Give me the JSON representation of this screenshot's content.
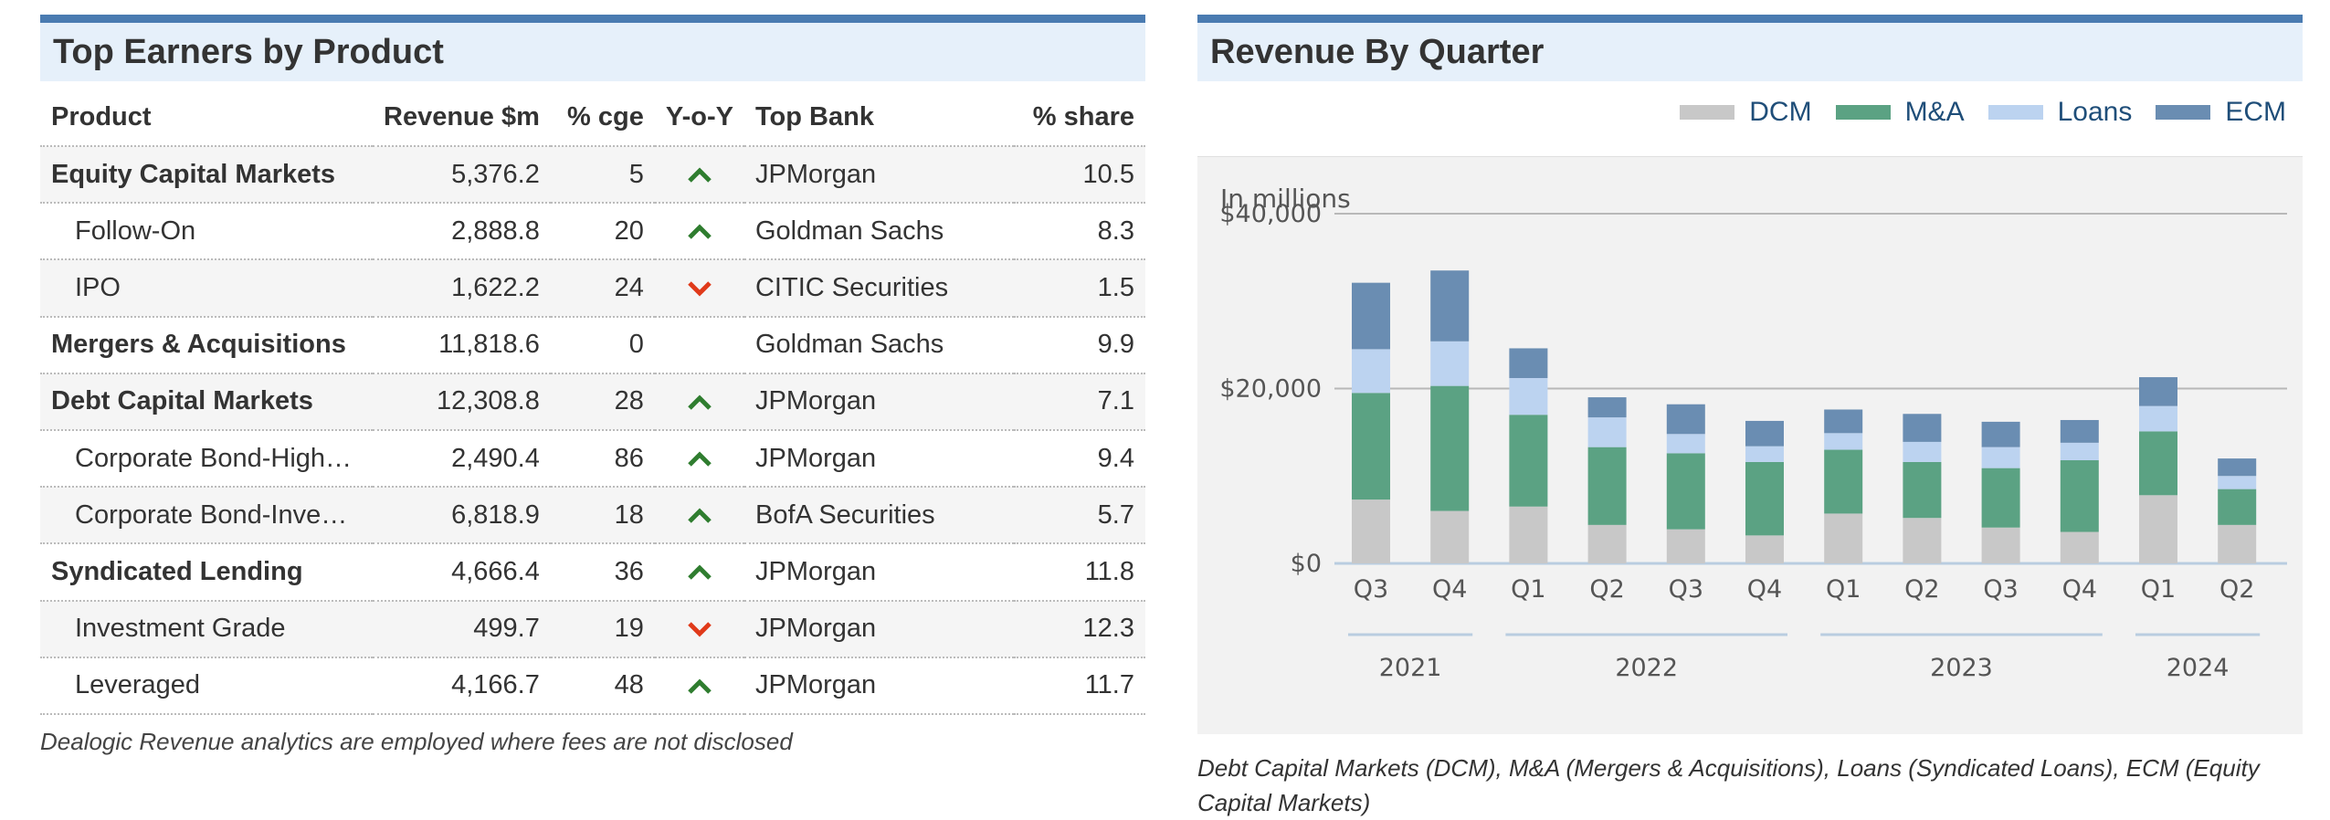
{
  "left": {
    "title": "Top Earners by Product",
    "columns": [
      "Product",
      "Revenue $m",
      "% cge",
      "Y-o-Y",
      "Top Bank",
      "% share"
    ],
    "rows": [
      {
        "product": "Equity Capital Markets",
        "revenue": "5,376.2",
        "cge": "5",
        "yoy": "up",
        "bank": "JPMorgan",
        "share": "10.5",
        "level": "group"
      },
      {
        "product": "Follow-On",
        "revenue": "2,888.8",
        "cge": "20",
        "yoy": "up",
        "bank": "Goldman Sachs",
        "share": "8.3",
        "level": "sub"
      },
      {
        "product": "IPO",
        "revenue": "1,622.2",
        "cge": "24",
        "yoy": "down",
        "bank": "CITIC Securities",
        "share": "1.5",
        "level": "sub"
      },
      {
        "product": "Mergers & Acquisitions",
        "revenue": "11,818.6",
        "cge": "0",
        "yoy": "none",
        "bank": "Goldman Sachs",
        "share": "9.9",
        "level": "group"
      },
      {
        "product": "Debt Capital Markets",
        "revenue": "12,308.8",
        "cge": "28",
        "yoy": "up",
        "bank": "JPMorgan",
        "share": "7.1",
        "level": "group"
      },
      {
        "product": "Corporate Bond-High…",
        "revenue": "2,490.4",
        "cge": "86",
        "yoy": "up",
        "bank": "JPMorgan",
        "share": "9.4",
        "level": "sub"
      },
      {
        "product": "Corporate Bond-Inve…",
        "revenue": "6,818.9",
        "cge": "18",
        "yoy": "up",
        "bank": "BofA Securities",
        "share": "5.7",
        "level": "sub"
      },
      {
        "product": "Syndicated Lending",
        "revenue": "4,666.4",
        "cge": "36",
        "yoy": "up",
        "bank": "JPMorgan",
        "share": "11.8",
        "level": "group"
      },
      {
        "product": "Investment Grade",
        "revenue": "499.7",
        "cge": "19",
        "yoy": "down",
        "bank": "JPMorgan",
        "share": "12.3",
        "level": "sub"
      },
      {
        "product": "Leveraged",
        "revenue": "4,166.7",
        "cge": "48",
        "yoy": "up",
        "bank": "JPMorgan",
        "share": "11.7",
        "level": "sub"
      }
    ],
    "note": "Dealogic Revenue analytics are employed where fees are not disclosed",
    "colors": {
      "up": "#2f7d2f",
      "down": "#e03a1a"
    }
  },
  "right": {
    "title": "Revenue By Quarter",
    "caption": "Debt Capital Markets (DCM), M&A (Mergers & Acquisitions), Loans (Syndicated Loans), ECM (Equity Capital Markets)"
  },
  "chart_data": {
    "type": "bar",
    "stacked": true,
    "ylabel": "In millions",
    "ylim": [
      0,
      40000
    ],
    "yticks": [
      "$0",
      "$20,000",
      "$40,000"
    ],
    "ytick_values": [
      0,
      20000,
      40000
    ],
    "grid": true,
    "legend_position": "top-right",
    "categories": [
      "Q3",
      "Q4",
      "Q1",
      "Q2",
      "Q3",
      "Q4",
      "Q1",
      "Q2",
      "Q3",
      "Q4",
      "Q1",
      "Q2"
    ],
    "year_groups": [
      {
        "label": "2021",
        "span": 2
      },
      {
        "label": "2022",
        "span": 4
      },
      {
        "label": "2023",
        "span": 4
      },
      {
        "label": "2024",
        "span": 2
      }
    ],
    "series": [
      {
        "name": "DCM",
        "color": "#c8c8c8",
        "values": [
          7300,
          6000,
          6500,
          4400,
          3900,
          3200,
          5700,
          5200,
          4100,
          3600,
          7800,
          4400
        ]
      },
      {
        "name": "M&A",
        "color": "#5ba283",
        "values": [
          12200,
          14300,
          10500,
          8900,
          8700,
          8400,
          7300,
          6400,
          6800,
          8200,
          7300,
          4100
        ]
      },
      {
        "name": "Loans",
        "color": "#bcd3f0",
        "values": [
          5000,
          5100,
          4200,
          3400,
          2200,
          1800,
          1900,
          2300,
          2400,
          2000,
          2900,
          1500
        ]
      },
      {
        "name": "ECM",
        "color": "#6a8db2",
        "values": [
          7600,
          8100,
          3400,
          2300,
          3400,
          2900,
          2700,
          3200,
          2900,
          2600,
          3300,
          2000
        ]
      }
    ]
  }
}
